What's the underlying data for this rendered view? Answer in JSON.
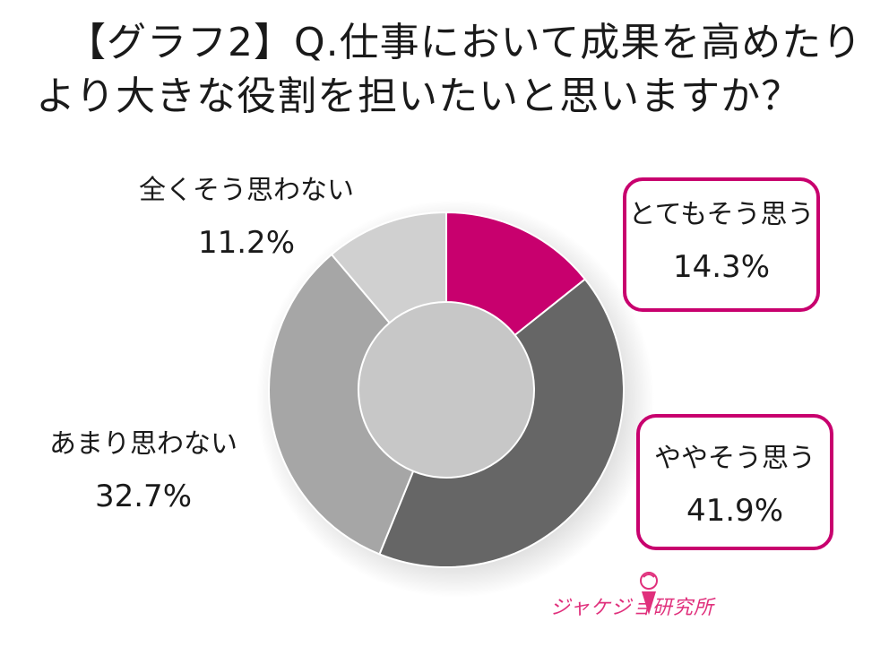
{
  "title": {
    "line1": "【グラフ2】Q.仕事において成果を高めたり",
    "line2": "より大きな役割を担いたいと思いますか？"
  },
  "chart_data": {
    "type": "pie",
    "categories": [
      "とてもそう思う",
      "ややそう思う",
      "あまり思わない",
      "全くそう思わない"
    ],
    "values": [
      14.3,
      41.9,
      32.7,
      11.2
    ],
    "value_labels": [
      "14.3%",
      "41.9%",
      "32.7%",
      "11.2%"
    ],
    "colors": [
      "#c8006e",
      "#666666",
      "#a6a6a6",
      "#d0d0d0"
    ],
    "hole": "donut"
  },
  "logo": {
    "text": "ジャケジョ研究所",
    "color": "#e0307c"
  }
}
